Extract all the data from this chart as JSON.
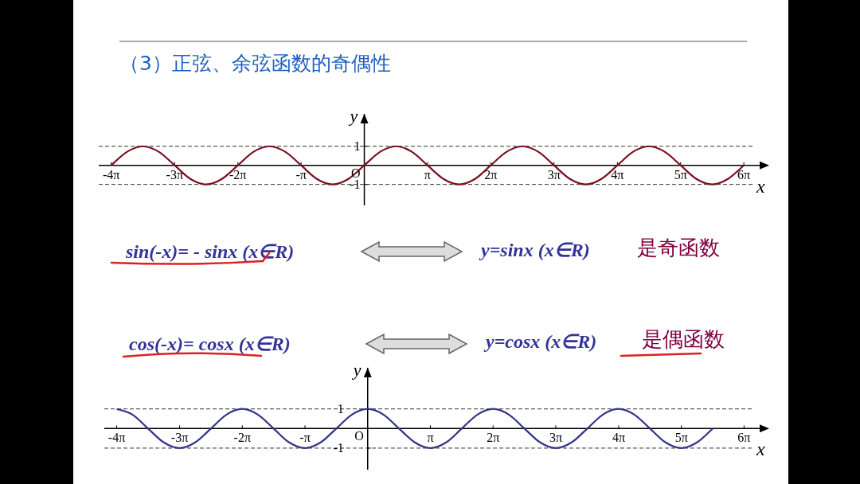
{
  "chart_data": [
    {
      "type": "line",
      "title": "（3）正弦、余弦函数的奇偶性",
      "xlabel": "x",
      "ylabel": "y",
      "xlim": [
        -13.19,
        20.11
      ],
      "ylim": [
        -2.1,
        2.7
      ],
      "xticks": [
        {
          "value": -12.57,
          "label": "-4π"
        },
        {
          "value": -9.42,
          "label": "-3π"
        },
        {
          "value": -6.28,
          "label": "-2π"
        },
        {
          "value": -3.14,
          "label": "-π"
        },
        {
          "value": 3.14,
          "label": "π"
        },
        {
          "value": 6.28,
          "label": "2π"
        },
        {
          "value": 9.42,
          "label": "3π"
        },
        {
          "value": 12.57,
          "label": "4π"
        },
        {
          "value": 15.71,
          "label": "5π"
        },
        {
          "value": 18.85,
          "label": "6π"
        }
      ],
      "yticks": [
        1,
        {
          "value": -1,
          "label": "-1"
        }
      ],
      "ref_lines": [
        {
          "axis": "y",
          "value": 1,
          "color": "#333333",
          "line_style": "dashed"
        },
        {
          "axis": "y",
          "value": -1,
          "color": "#333333",
          "line_style": "dashed"
        }
      ],
      "series": [
        {
          "color": "#7a1020",
          "x": [
            -12.57,
            -11.78,
            -11.0,
            -10.21,
            -9.42,
            -8.64,
            -7.85,
            -7.07,
            -6.28,
            -5.5,
            -4.71,
            -3.93,
            -3.14,
            -2.36,
            -1.57,
            -0.79,
            0,
            0.79,
            1.57,
            2.36,
            3.14,
            3.93,
            4.71,
            5.5,
            6.28,
            7.07,
            7.85,
            8.64,
            9.42,
            10.21,
            11.0,
            11.78,
            12.57,
            13.35,
            14.14,
            14.92,
            15.71,
            16.49,
            17.28,
            18.06,
            18.85
          ],
          "values": [
            0,
            0.71,
            1,
            0.71,
            0,
            -0.71,
            -1,
            -0.71,
            0,
            0.71,
            1,
            0.71,
            0,
            -0.71,
            -1,
            -0.71,
            0,
            0.71,
            1,
            0.71,
            0,
            -0.71,
            -1,
            -0.71,
            0,
            0.71,
            1,
            0.71,
            0,
            -0.71,
            -1,
            -0.71,
            0,
            0.71,
            1,
            0.71,
            0,
            -0.71,
            -1,
            -0.71,
            0
          ]
        }
      ],
      "annotations": [
        "sin(-x)= - sinx  (x∈R)",
        "y=sinx  (x∈R)",
        "是奇函数",
        "O"
      ]
    },
    {
      "type": "line",
      "xlabel": "x",
      "ylabel": "y",
      "xlim": [
        -13.19,
        20.11
      ],
      "ylim": [
        -2.1,
        3.1
      ],
      "xticks": [
        {
          "value": -12.57,
          "label": "-4π"
        },
        {
          "value": -9.42,
          "label": "-3π"
        },
        {
          "value": -6.28,
          "label": "-2π"
        },
        {
          "value": -3.14,
          "label": "-π"
        },
        {
          "value": 3.14,
          "label": "π"
        },
        {
          "value": 6.28,
          "label": "2π"
        },
        {
          "value": 9.42,
          "label": "3π"
        },
        {
          "value": 12.57,
          "label": "4π"
        },
        {
          "value": 15.71,
          "label": "5π"
        },
        {
          "value": 18.85,
          "label": "6π"
        }
      ],
      "yticks": [
        1,
        {
          "value": -1,
          "label": "-1"
        }
      ],
      "ref_lines": [
        {
          "axis": "y",
          "value": 1,
          "color": "#333333",
          "line_style": "dashed"
        },
        {
          "axis": "y",
          "value": -1,
          "color": "#333333",
          "line_style": "dashed"
        }
      ],
      "series": [
        {
          "color": "#333388",
          "x": [
            -12.57,
            -11.78,
            -11.0,
            -10.21,
            -9.42,
            -8.64,
            -7.85,
            -7.07,
            -6.28,
            -5.5,
            -4.71,
            -3.93,
            -3.14,
            -2.36,
            -1.57,
            -0.79,
            0,
            0.79,
            1.57,
            2.36,
            3.14,
            3.93,
            4.71,
            5.5,
            6.28,
            7.07,
            7.85,
            8.64,
            9.42,
            10.21,
            11.0,
            11.78,
            12.57,
            13.35,
            14.14,
            14.92,
            15.71,
            16.49,
            17.28
          ],
          "values": [
            1,
            0.71,
            0,
            -0.71,
            -1,
            -0.71,
            0,
            0.71,
            1,
            0.71,
            0,
            -0.71,
            -1,
            -0.71,
            0,
            0.71,
            1,
            0.71,
            0,
            -0.71,
            -1,
            -0.71,
            0,
            0.71,
            1,
            0.71,
            0,
            -0.71,
            -1,
            -0.71,
            0,
            0.71,
            1,
            0.71,
            0,
            -0.71,
            -1,
            -0.71,
            0
          ]
        }
      ],
      "annotations": [
        "cos(-x)= cosx   (x∈R)",
        "y=cosx  (x∈R)",
        "是偶函数",
        "O"
      ]
    }
  ]
}
